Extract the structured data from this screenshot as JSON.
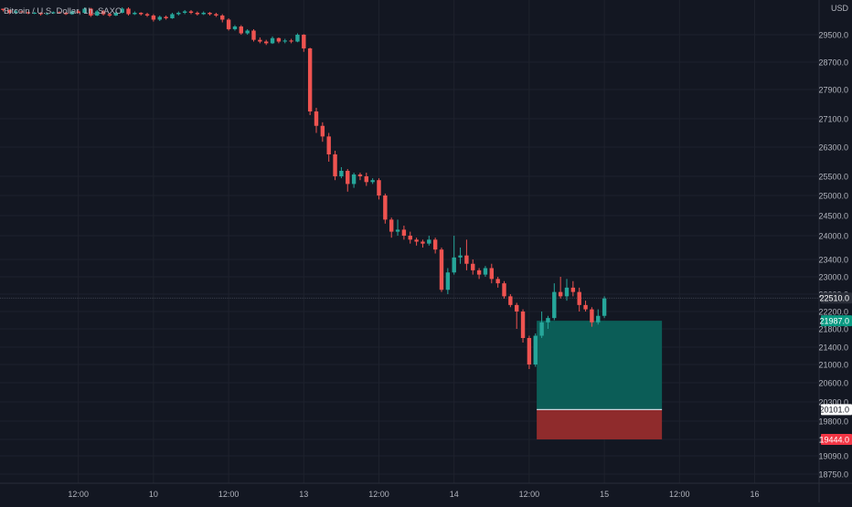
{
  "header": {
    "symbol_title": "Bitcoin / U.S. Dollar, 1h, SAXO"
  },
  "chart_data": {
    "type": "candlestick",
    "title": "Bitcoin / U.S. Dollar, 1h, SAXO",
    "currency_label": "USD",
    "y_ticks": [
      29500,
      28700,
      27900,
      27100,
      26300,
      25500,
      25000,
      24500,
      24000,
      23400,
      23000,
      22600,
      22200,
      21800,
      21400,
      21000,
      20600,
      20300,
      19800,
      19444,
      19090,
      18750
    ],
    "x_ticks": [
      {
        "label": "12:00",
        "hour": 12
      },
      {
        "label": "10",
        "hour": 24
      },
      {
        "label": "12:00",
        "hour": 36
      },
      {
        "label": "13",
        "hour": 48
      },
      {
        "label": "12:00",
        "hour": 60
      },
      {
        "label": "14",
        "hour": 72
      },
      {
        "label": "12:00",
        "hour": 84
      },
      {
        "label": "15",
        "hour": 96
      },
      {
        "label": "12:00",
        "hour": 108
      },
      {
        "label": "16",
        "hour": 120
      }
    ],
    "candles": [
      [
        30450,
        30400,
        30450,
        30350
      ],
      [
        30400,
        30300,
        30420,
        30250
      ],
      [
        30300,
        30350,
        30400,
        30250
      ],
      [
        30350,
        30320,
        30380,
        30280
      ],
      [
        30320,
        30280,
        30340,
        30250
      ],
      [
        30280,
        30300,
        30330,
        30250
      ],
      [
        30300,
        30250,
        30320,
        30200
      ],
      [
        30250,
        30280,
        30300,
        30220
      ],
      [
        30280,
        30320,
        30350,
        30260
      ],
      [
        30320,
        30300,
        30350,
        30280
      ],
      [
        30300,
        30250,
        30330,
        30220
      ],
      [
        30250,
        30350,
        30400,
        30230
      ],
      [
        30350,
        30300,
        30400,
        30280
      ],
      [
        30300,
        30450,
        30500,
        30280
      ],
      [
        30450,
        30200,
        30480,
        30150
      ],
      [
        30200,
        30350,
        30400,
        30180
      ],
      [
        30350,
        30250,
        30400,
        30200
      ],
      [
        30250,
        30200,
        30300,
        30150
      ],
      [
        30200,
        30300,
        30350,
        30180
      ],
      [
        30300,
        30450,
        30500,
        30280
      ],
      [
        30450,
        30250,
        30500,
        30200
      ],
      [
        30250,
        30300,
        30350,
        30220
      ],
      [
        30300,
        30250,
        30320,
        30200
      ],
      [
        30250,
        30200,
        30300,
        30150
      ],
      [
        30200,
        30050,
        30250,
        29980
      ],
      [
        30050,
        30150,
        30200,
        30000
      ],
      [
        30150,
        30100,
        30200,
        30050
      ],
      [
        30100,
        30250,
        30300,
        30080
      ],
      [
        30250,
        30300,
        30350,
        30200
      ],
      [
        30300,
        30350,
        30400,
        30250
      ],
      [
        30350,
        30300,
        30400,
        30250
      ],
      [
        30300,
        30250,
        30350,
        30200
      ],
      [
        30250,
        30300,
        30350,
        30220
      ],
      [
        30300,
        30250,
        30330,
        30200
      ],
      [
        30250,
        30200,
        30300,
        30150
      ],
      [
        30200,
        30050,
        30250,
        29950
      ],
      [
        30050,
        29700,
        30100,
        29650
      ],
      [
        29700,
        29800,
        29850,
        29650
      ],
      [
        29800,
        29550,
        29850,
        29500
      ],
      [
        29550,
        29650,
        29700,
        29500
      ],
      [
        29650,
        29350,
        29700,
        29300
      ],
      [
        29350,
        29300,
        29420,
        29250
      ],
      [
        29300,
        29250,
        29350,
        29200
      ],
      [
        29250,
        29400,
        29450,
        29230
      ],
      [
        29400,
        29300,
        29420,
        29250
      ],
      [
        29300,
        29330,
        29380,
        29250
      ],
      [
        29330,
        29300,
        29380,
        29250
      ],
      [
        29300,
        29500,
        29550,
        29280
      ],
      [
        29500,
        29100,
        29520,
        29000
      ],
      [
        29100,
        27300,
        29120,
        27200
      ],
      [
        27300,
        26900,
        27400,
        26700
      ],
      [
        26900,
        26600,
        27000,
        26450
      ],
      [
        26600,
        26100,
        26700,
        25900
      ],
      [
        26100,
        25500,
        26200,
        25400
      ],
      [
        25500,
        25650,
        25750,
        25450
      ],
      [
        25650,
        25300,
        25700,
        25100
      ],
      [
        25300,
        25550,
        25600,
        25200
      ],
      [
        25550,
        25500,
        25600,
        25400
      ],
      [
        25500,
        25350,
        25600,
        25250
      ],
      [
        25350,
        25400,
        25450,
        25300
      ],
      [
        25400,
        25000,
        25450,
        24900
      ],
      [
        25000,
        24400,
        25050,
        24300
      ],
      [
        24400,
        24100,
        24450,
        23950
      ],
      [
        24100,
        24150,
        24400,
        24000
      ],
      [
        24150,
        24000,
        24250,
        23900
      ],
      [
        24000,
        23900,
        24100,
        23800
      ],
      [
        23900,
        23850,
        23950,
        23750
      ],
      [
        23850,
        23800,
        23900,
        23700
      ],
      [
        23800,
        23900,
        24000,
        23750
      ],
      [
        23900,
        23650,
        23950,
        23550
      ],
      [
        23650,
        22700,
        23700,
        22650
      ],
      [
        22700,
        23100,
        23200,
        22600
      ],
      [
        23100,
        23450,
        24000,
        23050
      ],
      [
        23450,
        23500,
        23700,
        23300
      ],
      [
        23500,
        23300,
        23900,
        23150
      ],
      [
        23300,
        23150,
        23400,
        23050
      ],
      [
        23150,
        23050,
        23200,
        22950
      ],
      [
        23050,
        23200,
        23250,
        23000
      ],
      [
        23200,
        22950,
        23300,
        22850
      ],
      [
        22950,
        22850,
        23000,
        22750
      ],
      [
        22850,
        22550,
        22900,
        22500
      ],
      [
        22550,
        22350,
        22600,
        22300
      ],
      [
        22350,
        22200,
        22400,
        21800
      ],
      [
        22200,
        21600,
        22250,
        21500
      ],
      [
        21600,
        21000,
        21650,
        20900
      ],
      [
        21000,
        21650,
        21700,
        20950
      ],
      [
        21650,
        21950,
        22200,
        21600
      ],
      [
        21950,
        22050,
        22100,
        21800
      ],
      [
        22050,
        22650,
        22850,
        22000
      ],
      [
        22650,
        22550,
        23000,
        22500
      ],
      [
        22550,
        22750,
        22950,
        22450
      ],
      [
        22750,
        22650,
        22900,
        22550
      ],
      [
        22650,
        22350,
        22750,
        22200
      ],
      [
        22350,
        22250,
        22450,
        22200
      ],
      [
        22250,
        21950,
        22300,
        21850
      ],
      [
        21950,
        22100,
        22250,
        21900
      ],
      [
        22100,
        22500,
        22550,
        22050
      ]
    ],
    "annotations": [
      {
        "type": "horizontal-line",
        "price": 22510
      },
      {
        "type": "long-position",
        "target": 21987,
        "entry": 20101,
        "stop": 19444
      }
    ],
    "price_labels": [
      {
        "value": "22510.0",
        "color": "#2a2e39",
        "text_color": "#ffffff"
      },
      {
        "value": "21987.0",
        "color": "#089981",
        "text_color": "#ffffff"
      },
      {
        "value": "20101.0",
        "color": "#ffffff",
        "text_color": "#131722"
      },
      {
        "value": "19444.0",
        "color": "#f23645",
        "text_color": "#ffffff"
      }
    ],
    "colors": {
      "background": "#131722",
      "grid": "#1e222d",
      "up": "#26a69a",
      "down": "#ef5350",
      "target_zone": "#0b5d57",
      "stop_zone": "#8f2b2c"
    },
    "grid": true
  }
}
